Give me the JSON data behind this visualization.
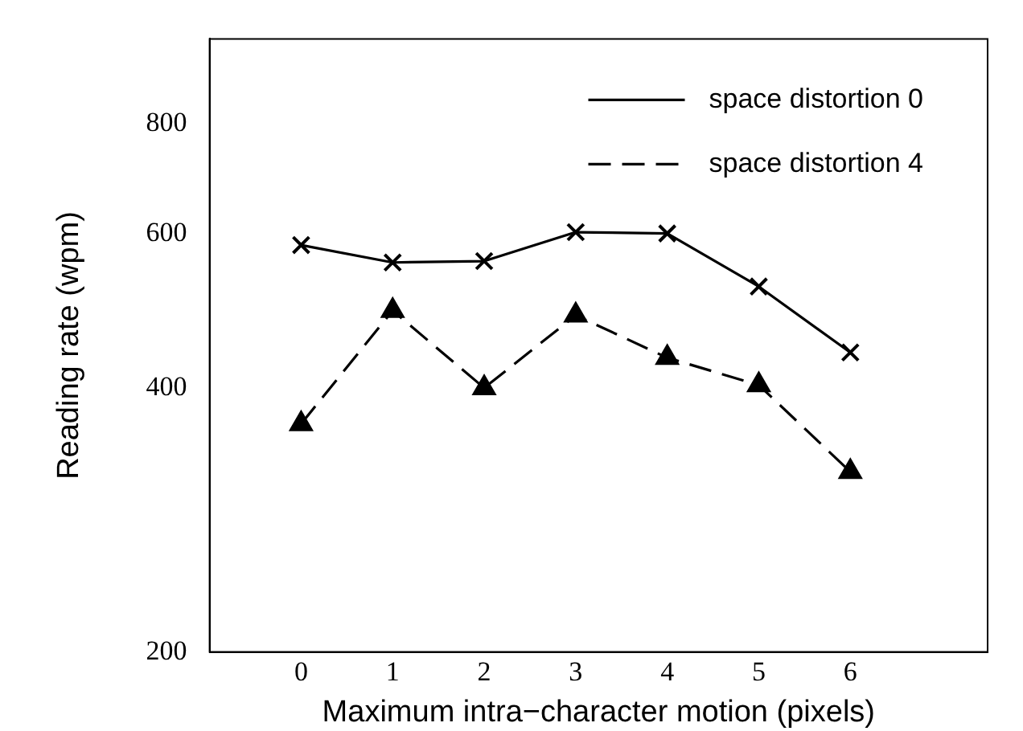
{
  "chart_data": {
    "type": "line",
    "xlabel": "Maximum intra−character motion (pixels)",
    "ylabel": "Reading rate (wpm)",
    "x": [
      0,
      1,
      2,
      3,
      4,
      5,
      6
    ],
    "xlim": [
      -1,
      7.5
    ],
    "xticks": [
      0,
      1,
      2,
      3,
      4,
      5,
      6
    ],
    "ylim": [
      200,
      1000
    ],
    "yticks": [
      200,
      400,
      600,
      800
    ],
    "log": "y",
    "grid": false,
    "legend": "top right",
    "series": [
      {
        "name": "space distortion 0",
        "color": "#000000",
        "marker": "cross",
        "line_style": "solid",
        "values": [
          582,
          556,
          558,
          602,
          600,
          522,
          439
        ]
      },
      {
        "name": "space distortion 4",
        "color": "#000000",
        "marker": "triangle",
        "line_style": "dashed",
        "values": [
          364,
          490,
          400,
          484,
          433,
          403,
          321
        ]
      }
    ]
  }
}
